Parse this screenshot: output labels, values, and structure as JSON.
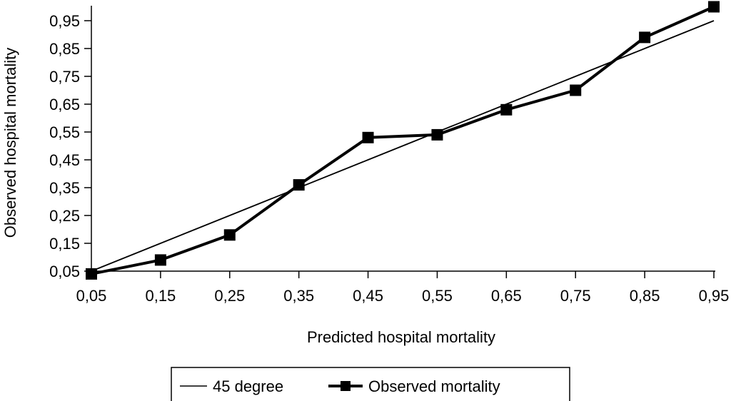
{
  "chart_data": {
    "type": "line",
    "xlabel": "Predicted hospital mortality",
    "ylabel": "Observed hospital mortality",
    "x": [
      0.05,
      0.15,
      0.25,
      0.35,
      0.45,
      0.55,
      0.65,
      0.75,
      0.85,
      0.95
    ],
    "x_tick_labels": [
      "0,05",
      "0,15",
      "0,25",
      "0,35",
      "0,45",
      "0,55",
      "0,65",
      "0,75",
      "0,85",
      "0,95"
    ],
    "y_ticks": [
      0.05,
      0.15,
      0.25,
      0.35,
      0.45,
      0.55,
      0.65,
      0.75,
      0.85,
      0.95
    ],
    "y_tick_labels": [
      "0,05",
      "0,15",
      "0,25",
      "0,35",
      "0,45",
      "0,55",
      "0,65",
      "0,75",
      "0,85",
      "0,95"
    ],
    "xlim": [
      0.05,
      0.95
    ],
    "ylim": [
      0.05,
      1.0
    ],
    "grid": false,
    "legend_position": "bottom",
    "series": [
      {
        "name": "45 degree",
        "values": [
          0.05,
          0.15,
          0.25,
          0.35,
          0.45,
          0.55,
          0.65,
          0.75,
          0.85,
          0.95
        ],
        "marker": "none",
        "color": "#000000"
      },
      {
        "name": "Observed mortality",
        "values": [
          0.04,
          0.09,
          0.18,
          0.36,
          0.53,
          0.54,
          0.63,
          0.7,
          0.89,
          1.0
        ],
        "marker": "square",
        "color": "#000000"
      }
    ]
  }
}
